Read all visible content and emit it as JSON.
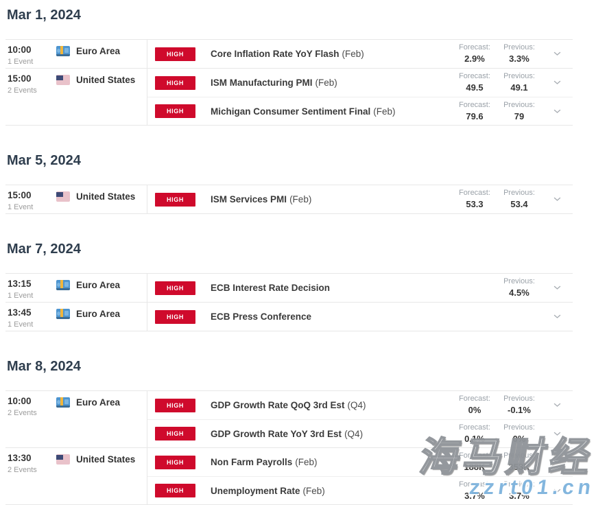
{
  "labels": {
    "forecast": "Forecast:",
    "previous": "Previous:",
    "importance_high": "HIGH"
  },
  "colors": {
    "badge_high_bg": "#cf0a2c",
    "badge_high_text": "#ffffff",
    "date_header": "#2f3e4e",
    "watermark_blue": "#7db3dd",
    "row_border": "#e7e7e7"
  },
  "watermark": {
    "line1": "海马财经",
    "line2": "zzrt01.cn"
  },
  "days": [
    {
      "date": "Mar 1, 2024",
      "groups": [
        {
          "time": "10:00",
          "count": "1 Event",
          "country": "Euro Area",
          "flag": "eu",
          "events": [
            {
              "importance": "HIGH",
              "title": "Core Inflation Rate YoY Flash",
              "period": "(Feb)",
              "forecast": "2.9%",
              "previous": "3.3%"
            }
          ]
        },
        {
          "time": "15:00",
          "count": "2 Events",
          "country": "United States",
          "flag": "us",
          "events": [
            {
              "importance": "HIGH",
              "title": "ISM Manufacturing PMI",
              "period": "(Feb)",
              "forecast": "49.5",
              "previous": "49.1"
            },
            {
              "importance": "HIGH",
              "title": "Michigan Consumer Sentiment Final",
              "period": "(Feb)",
              "forecast": "79.6",
              "previous": "79"
            }
          ]
        }
      ]
    },
    {
      "date": "Mar 5, 2024",
      "groups": [
        {
          "time": "15:00",
          "count": "1 Event",
          "country": "United States",
          "flag": "us",
          "events": [
            {
              "importance": "HIGH",
              "title": "ISM Services PMI",
              "period": "(Feb)",
              "forecast": "53.3",
              "previous": "53.4"
            }
          ]
        }
      ]
    },
    {
      "date": "Mar 7, 2024",
      "groups": [
        {
          "time": "13:15",
          "count": "1 Event",
          "country": "Euro Area",
          "flag": "eu",
          "events": [
            {
              "importance": "HIGH",
              "title": "ECB Interest Rate Decision",
              "period": "",
              "forecast": null,
              "previous": "4.5%"
            }
          ]
        },
        {
          "time": "13:45",
          "count": "1 Event",
          "country": "Euro Area",
          "flag": "eu",
          "events": [
            {
              "importance": "HIGH",
              "title": "ECB Press Conference",
              "period": "",
              "forecast": null,
              "previous": null
            }
          ]
        }
      ]
    },
    {
      "date": "Mar 8, 2024",
      "groups": [
        {
          "time": "10:00",
          "count": "2 Events",
          "country": "Euro Area",
          "flag": "eu",
          "events": [
            {
              "importance": "HIGH",
              "title": "GDP Growth Rate QoQ 3rd Est",
              "period": "(Q4)",
              "forecast": "0%",
              "previous": "-0.1%"
            },
            {
              "importance": "HIGH",
              "title": "GDP Growth Rate YoY 3rd Est",
              "period": "(Q4)",
              "forecast": "0.1%",
              "previous": "0%"
            }
          ]
        },
        {
          "time": "13:30",
          "count": "2 Events",
          "country": "United States",
          "flag": "us",
          "events": [
            {
              "importance": "HIGH",
              "title": "Non Farm Payrolls",
              "period": "(Feb)",
              "forecast": "188K",
              "previous": "353K"
            },
            {
              "importance": "HIGH",
              "title": "Unemployment Rate",
              "period": "(Feb)",
              "forecast": "3.7%",
              "previous": "3.7%"
            }
          ]
        }
      ]
    }
  ]
}
